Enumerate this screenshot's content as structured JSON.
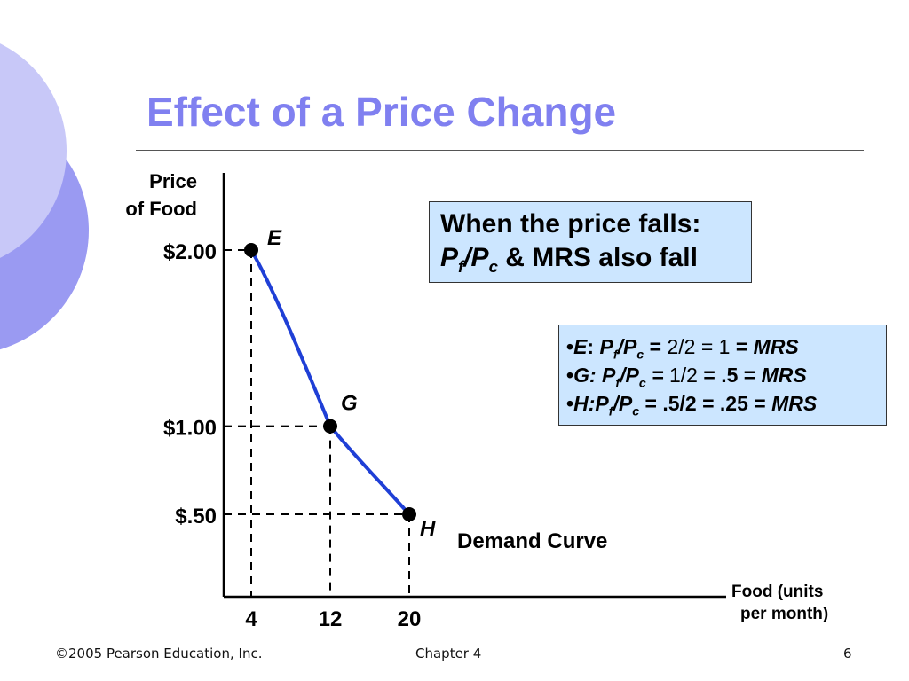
{
  "slide": {
    "title": "Effect of a Price Change",
    "footer": {
      "copyright": "©2005 Pearson Education, Inc.",
      "chapter": "Chapter 4",
      "page": "6"
    }
  },
  "colors": {
    "title": "#8080f0",
    "curve": "#1f3fd6",
    "callout_bg": "#cce6ff",
    "decor_light": "#c8c8f8",
    "decor_dark": "#9a9af2"
  },
  "callouts": {
    "main": {
      "line1": "When the price falls:",
      "line2_amp": " & MRS also fall"
    },
    "mrs": [
      {
        "label": "E",
        "sep": ":",
        "eq": " = ",
        "calc": "2/2 = 1",
        "tail": " = ",
        "mrs": "MRS"
      },
      {
        "label": "G",
        "sep": ": ",
        "eq": " = ",
        "calc": "1/2",
        "tail": " = .5 = ",
        "mrs": "MRS"
      },
      {
        "label": "H",
        "sep": ":",
        "eq": " = .5/2 = .25 = ",
        "calc": "",
        "tail": "",
        "mrs": "MRS"
      }
    ]
  },
  "chart_data": {
    "type": "line",
    "title": "",
    "ylabel_lines": [
      "Price",
      "of Food"
    ],
    "xlabel_lines": [
      "Food (units",
      "per month)"
    ],
    "y_ticks": [
      {
        "value": 2.0,
        "label": "$2.00"
      },
      {
        "value": 1.0,
        "label": "$1.00"
      },
      {
        "value": 0.5,
        "label": "$.50"
      }
    ],
    "x_ticks": [
      {
        "value": 4,
        "label": "4"
      },
      {
        "value": 12,
        "label": "12"
      },
      {
        "value": 20,
        "label": "20"
      }
    ],
    "series": [
      {
        "name": "Demand Curve",
        "points": [
          {
            "label": "E",
            "x": 4,
            "y": 2.0
          },
          {
            "label": "G",
            "x": 12,
            "y": 1.0
          },
          {
            "label": "H",
            "x": 20,
            "y": 0.5
          }
        ]
      }
    ],
    "curve_label": "Demand Curve",
    "grid": false
  }
}
